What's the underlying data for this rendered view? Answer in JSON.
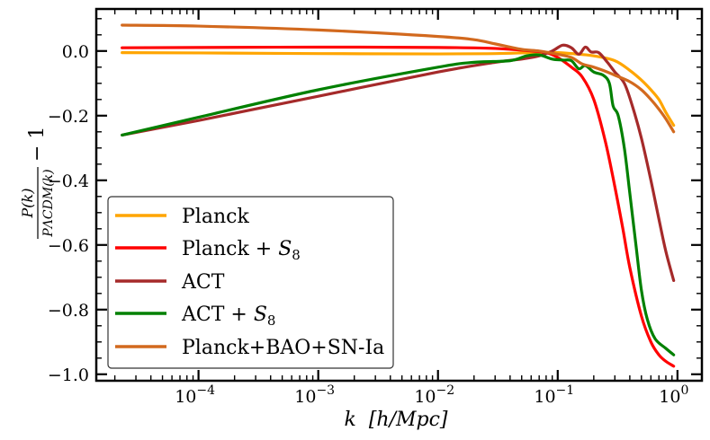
{
  "chart_data": {
    "type": "line",
    "title": "",
    "xlabel": "k  [h/Mpc]",
    "xscale": "log",
    "xlim": [
      1.4e-05,
      1.6
    ],
    "ylim": [
      -1.02,
      0.13
    ],
    "ylabel": {
      "numerator": "P(k)",
      "denominator": "PΛCDM(k)",
      "suffix": "− 1"
    },
    "x_ticks": [
      {
        "value": 0.0001,
        "base": "10",
        "exp": "−4"
      },
      {
        "value": 0.001,
        "base": "10",
        "exp": "−3"
      },
      {
        "value": 0.01,
        "base": "10",
        "exp": "−2"
      },
      {
        "value": 0.1,
        "base": "10",
        "exp": "−1"
      },
      {
        "value": 1,
        "base": "10",
        "exp": "0"
      }
    ],
    "y_ticks": [
      {
        "value": 0.0,
        "label": "0.0"
      },
      {
        "value": -0.2,
        "label": "−0.2"
      },
      {
        "value": -0.4,
        "label": "−0.4"
      },
      {
        "value": -0.6,
        "label": "−0.6"
      },
      {
        "value": -0.8,
        "label": "−0.8"
      },
      {
        "value": -1.0,
        "label": "−1.0"
      }
    ],
    "legend_position": "lower-left",
    "series": [
      {
        "name": "Planck",
        "color": "#FFA500",
        "points": [
          [
            2.3e-05,
            -0.005
          ],
          [
            0.0001,
            -0.006
          ],
          [
            0.001,
            -0.008
          ],
          [
            0.01,
            -0.009
          ],
          [
            0.03,
            -0.008
          ],
          [
            0.06,
            -0.005
          ],
          [
            0.1,
            -0.005
          ],
          [
            0.15,
            -0.01
          ],
          [
            0.2,
            -0.015
          ],
          [
            0.3,
            -0.03
          ],
          [
            0.4,
            -0.06
          ],
          [
            0.5,
            -0.09
          ],
          [
            0.6,
            -0.12
          ],
          [
            0.7,
            -0.15
          ],
          [
            0.8,
            -0.19
          ],
          [
            0.93,
            -0.23
          ]
        ]
      },
      {
        "name": "Planck + S8",
        "color": "#FF0000",
        "points": [
          [
            2.3e-05,
            0.01
          ],
          [
            0.0001,
            0.011
          ],
          [
            0.001,
            0.012
          ],
          [
            0.01,
            0.011
          ],
          [
            0.03,
            0.008
          ],
          [
            0.06,
            0.0
          ],
          [
            0.08,
            -0.005
          ],
          [
            0.1,
            -0.02
          ],
          [
            0.13,
            -0.05
          ],
          [
            0.16,
            -0.08
          ],
          [
            0.2,
            -0.15
          ],
          [
            0.25,
            -0.28
          ],
          [
            0.3,
            -0.42
          ],
          [
            0.35,
            -0.55
          ],
          [
            0.4,
            -0.67
          ],
          [
            0.5,
            -0.82
          ],
          [
            0.6,
            -0.9
          ],
          [
            0.7,
            -0.94
          ],
          [
            0.8,
            -0.96
          ],
          [
            0.93,
            -0.975
          ]
        ]
      },
      {
        "name": "ACT",
        "color": "#A52A2A",
        "points": [
          [
            2.3e-05,
            -0.26
          ],
          [
            0.0001,
            -0.215
          ],
          [
            0.001,
            -0.14
          ],
          [
            0.01,
            -0.065
          ],
          [
            0.03,
            -0.035
          ],
          [
            0.05,
            -0.025
          ],
          [
            0.07,
            -0.015
          ],
          [
            0.09,
            0.0
          ],
          [
            0.11,
            0.018
          ],
          [
            0.13,
            0.01
          ],
          [
            0.15,
            -0.01
          ],
          [
            0.17,
            0.012
          ],
          [
            0.19,
            -0.003
          ],
          [
            0.22,
            -0.005
          ],
          [
            0.26,
            -0.035
          ],
          [
            0.3,
            -0.065
          ],
          [
            0.36,
            -0.1
          ],
          [
            0.42,
            -0.17
          ],
          [
            0.5,
            -0.27
          ],
          [
            0.6,
            -0.4
          ],
          [
            0.7,
            -0.52
          ],
          [
            0.8,
            -0.62
          ],
          [
            0.93,
            -0.71
          ]
        ]
      },
      {
        "name": "ACT + S8",
        "color": "#008000",
        "points": [
          [
            2.3e-05,
            -0.26
          ],
          [
            0.0001,
            -0.205
          ],
          [
            0.001,
            -0.12
          ],
          [
            0.01,
            -0.05
          ],
          [
            0.02,
            -0.035
          ],
          [
            0.04,
            -0.03
          ],
          [
            0.055,
            -0.015
          ],
          [
            0.07,
            -0.012
          ],
          [
            0.09,
            -0.025
          ],
          [
            0.11,
            -0.028
          ],
          [
            0.13,
            -0.03
          ],
          [
            0.15,
            -0.055
          ],
          [
            0.17,
            -0.045
          ],
          [
            0.2,
            -0.065
          ],
          [
            0.24,
            -0.075
          ],
          [
            0.27,
            -0.1
          ],
          [
            0.29,
            -0.17
          ],
          [
            0.32,
            -0.2
          ],
          [
            0.36,
            -0.3
          ],
          [
            0.4,
            -0.44
          ],
          [
            0.45,
            -0.6
          ],
          [
            0.5,
            -0.74
          ],
          [
            0.56,
            -0.83
          ],
          [
            0.65,
            -0.89
          ],
          [
            0.8,
            -0.92
          ],
          [
            0.93,
            -0.94
          ]
        ]
      },
      {
        "name": "Planck+BAO+SN-Ia",
        "color": "#D2691E",
        "points": [
          [
            2.3e-05,
            0.08
          ],
          [
            0.0001,
            0.077
          ],
          [
            0.001,
            0.065
          ],
          [
            0.01,
            0.045
          ],
          [
            0.02,
            0.035
          ],
          [
            0.03,
            0.022
          ],
          [
            0.05,
            0.005
          ],
          [
            0.07,
            0.0
          ],
          [
            0.1,
            -0.01
          ],
          [
            0.13,
            -0.02
          ],
          [
            0.16,
            -0.04
          ],
          [
            0.2,
            -0.05
          ],
          [
            0.26,
            -0.065
          ],
          [
            0.3,
            -0.075
          ],
          [
            0.4,
            -0.095
          ],
          [
            0.5,
            -0.12
          ],
          [
            0.6,
            -0.15
          ],
          [
            0.7,
            -0.18
          ],
          [
            0.8,
            -0.21
          ],
          [
            0.93,
            -0.25
          ]
        ]
      }
    ]
  },
  "legend_labels": {
    "s0": "Planck",
    "s1_main": "Planck + ",
    "s1_sym": "S",
    "s1_sub": "8",
    "s2": "ACT",
    "s3_main": "ACT + ",
    "s3_sym": "S",
    "s3_sub": "8",
    "s4": "Planck+BAO+SN-Ia"
  }
}
